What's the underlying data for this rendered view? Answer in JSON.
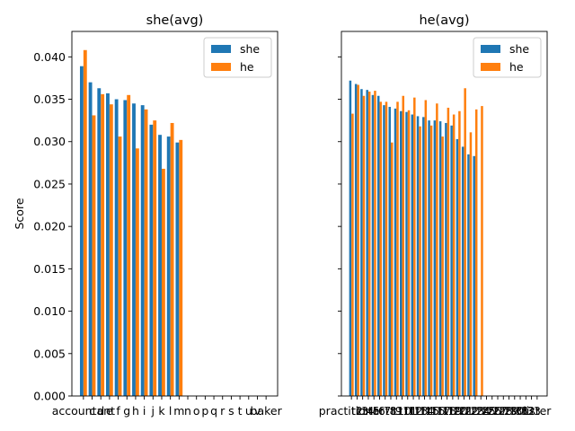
{
  "colors": {
    "she": "#1f77b4",
    "he": "#ff7f0e"
  },
  "chart_data": [
    {
      "type": "bar",
      "title": "she(avg)",
      "xlabel": "",
      "ylabel": "Score",
      "ylim": [
        0,
        0.043
      ],
      "yticks": [
        "0.000",
        "0.005",
        "0.010",
        "0.015",
        "0.020",
        "0.025",
        "0.030",
        "0.035",
        "0.040"
      ],
      "grid": false,
      "legend": "top-right",
      "categories": [
        "accountant",
        "c",
        "d",
        "e",
        "f",
        "g",
        "h",
        "i",
        "j",
        "k",
        "l",
        "m",
        "n",
        "o",
        "p",
        "q",
        "r",
        "s",
        "t",
        "u",
        "v",
        "baker"
      ],
      "series": [
        {
          "name": "she",
          "values": [
            0.0389,
            0.037,
            0.0363,
            0.0357,
            0.035,
            0.0349,
            0.0345,
            0.0343,
            0.032,
            0.0308,
            0.0306,
            0.0299,
            null,
            null,
            null,
            null,
            null,
            null,
            null,
            null,
            null,
            null
          ]
        },
        {
          "name": "he",
          "values": [
            0.0408,
            0.0331,
            0.0356,
            0.0344,
            0.0306,
            0.0355,
            0.0292,
            0.0338,
            0.0325,
            0.0268,
            0.0322,
            0.0302,
            null,
            null,
            null,
            null,
            null,
            null,
            null,
            null,
            null,
            null
          ]
        }
      ]
    },
    {
      "type": "bar",
      "title": "he(avg)",
      "xlabel": "",
      "ylabel": "",
      "ylim": [
        0,
        0.043
      ],
      "grid": false,
      "legend": "top-right",
      "categories": [
        "practitioner",
        "t2",
        "t3",
        "t4",
        "t5",
        "t6",
        "t7",
        "t8",
        "t9",
        "t10",
        "t11",
        "t12",
        "t13",
        "t14",
        "t15",
        "t16",
        "t17",
        "t18",
        "t19",
        "t20",
        "t21",
        "t22",
        "t23",
        "t24",
        "t25",
        "t26",
        "t27",
        "t28",
        "t29",
        "t30",
        "t31",
        "t32",
        "t33",
        "lister"
      ],
      "series": [
        {
          "name": "she",
          "values": [
            0.0372,
            0.0368,
            0.0362,
            0.0361,
            0.0355,
            0.0354,
            0.0343,
            0.0341,
            0.0339,
            0.0336,
            0.0335,
            0.0332,
            0.033,
            0.0329,
            0.0325,
            0.0325,
            0.0324,
            0.0322,
            0.0319,
            0.0303,
            0.0294,
            0.0285,
            0.0283,
            null,
            null,
            null,
            null,
            null,
            null,
            null,
            null,
            null,
            null,
            null
          ]
        },
        {
          "name": "he",
          "values": [
            0.0333,
            0.0367,
            0.0354,
            0.0359,
            0.036,
            0.0347,
            0.0347,
            0.0299,
            0.0347,
            0.0354,
            0.0337,
            0.0352,
            0.0318,
            0.0349,
            0.0319,
            0.0345,
            0.0306,
            0.034,
            0.0332,
            0.0336,
            0.0363,
            0.0311,
            0.0338,
            0.0342,
            null,
            null,
            null,
            null,
            null,
            null,
            null,
            null,
            null,
            null
          ]
        }
      ]
    }
  ]
}
